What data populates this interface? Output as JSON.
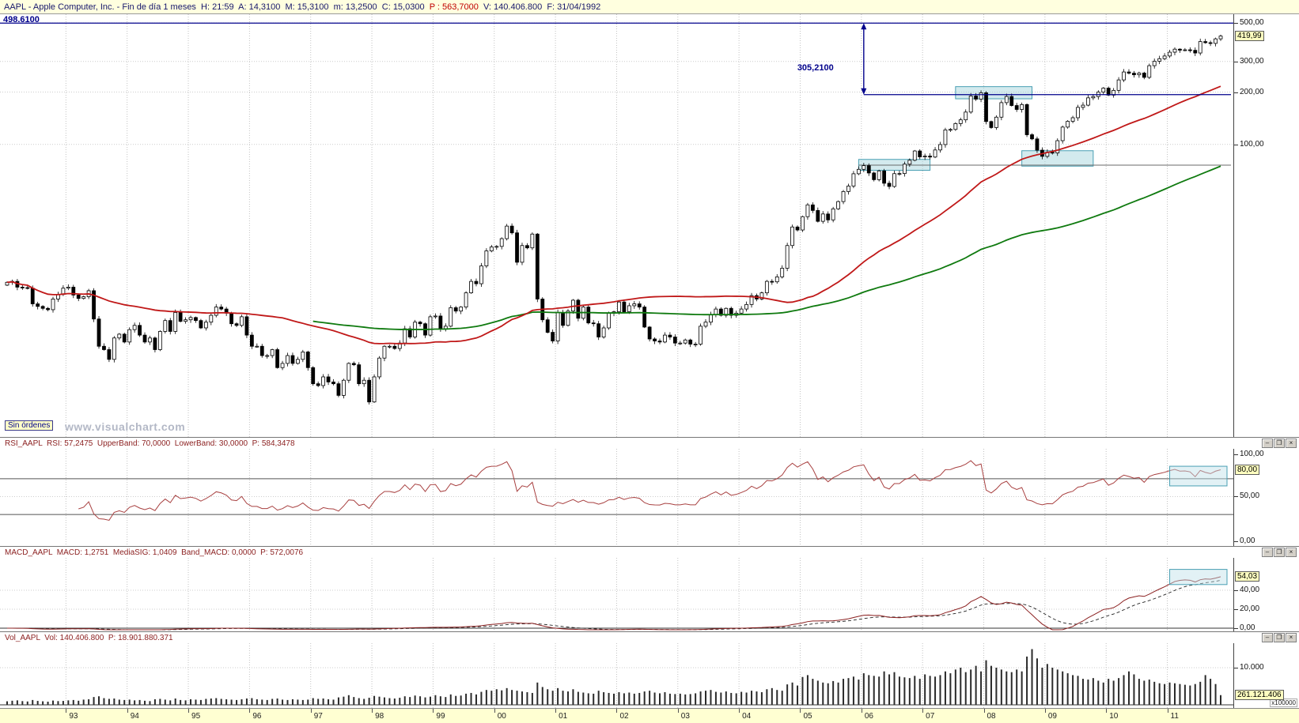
{
  "title_bar": {
    "pre": "AAPL - Apple Computer, Inc. - Fin de día 1 meses  H: 21:59  A: 14,3100  M: 15,3100  m: 13,2500  C: 15,0300  ",
    "price_red": "P : 563,7000",
    "post": "  V: 140.406.800  F: 31/04/1992"
  },
  "window_controls": {
    "minimize": "–",
    "restore": "❐",
    "close": "×"
  },
  "main_panel": {
    "top_level_label": "498.6100",
    "measure_label": "305,2100",
    "no_orders_label": "Sin órdenes",
    "watermark": "www.visualchart.com",
    "axis_labels": [
      "500,00",
      "300,00",
      "200,00",
      "100,00"
    ],
    "last_price_badge": "419,99"
  },
  "rsi_panel": {
    "header": "RSI_AAPL  RSI: 57,2475  UpperBand: 70,0000  LowerBand: 30,0000  P: 584,3478",
    "axis_labels": [
      "100,00",
      "50,00",
      "0,00"
    ],
    "badge": "80,00"
  },
  "macd_panel": {
    "header": "MACD_AAPL  MACD: 1,2751  MediaSIG: 1,0409  Band_MACD: 0,0000  P: 572,0076",
    "axis_labels": [
      "40,00",
      "20,00",
      "0,00"
    ],
    "badge": "54,03"
  },
  "vol_panel": {
    "header": "Vol_AAPL  Vol: 140.406.800  P: 18.901.880.371",
    "axis_labels": [
      "10.000"
    ],
    "badge": "261.121.406",
    "multiplier": "x100000"
  },
  "time_axis": {
    "years": [
      "93",
      "94",
      "95",
      "96",
      "97",
      "98",
      "99",
      "00",
      "01",
      "02",
      "03",
      "04",
      "05",
      "06",
      "07",
      "08",
      "09",
      "10",
      "11"
    ]
  },
  "chart_data": {
    "type": "candlestick",
    "symbol": "AAPL",
    "company": "Apple Computer, Inc.",
    "period": "1 month bars",
    "range": "1992-01 to 2011-11",
    "scale": "logarithmic",
    "price_axis_ticks": [
      500,
      300,
      200,
      100
    ],
    "last_price": 419.99,
    "closes": [
      16.1,
      16.3,
      15.1,
      15.0,
      14.9,
      12.1,
      11.7,
      11.4,
      11.2,
      12.9,
      13.7,
      14.9,
      15.1,
      13.6,
      13.0,
      13.3,
      14.4,
      9.9,
      6.9,
      6.6,
      5.8,
      7.7,
      8.1,
      7.3,
      8.6,
      9.1,
      8.0,
      7.3,
      7.7,
      6.6,
      8.4,
      9.7,
      8.4,
      10.8,
      9.6,
      9.8,
      10.1,
      9.7,
      8.8,
      9.5,
      10.4,
      11.6,
      11.3,
      10.7,
      9.3,
      9.1,
      10.2,
      8.0,
      6.9,
      6.9,
      6.1,
      6.1,
      6.6,
      5.2,
      5.5,
      6.1,
      5.5,
      5.8,
      6.4,
      5.2,
      4.2,
      4.1,
      4.6,
      4.3,
      4.2,
      3.6,
      4.4,
      5.5,
      5.4,
      4.2,
      4.4,
      3.3,
      4.6,
      5.9,
      6.9,
      6.9,
      6.7,
      7.2,
      8.7,
      7.8,
      9.5,
      9.3,
      8.0,
      10.2,
      10.3,
      8.7,
      9.0,
      11.5,
      11.0,
      11.6,
      14.0,
      16.3,
      15.8,
      20.0,
      24.4,
      25.7,
      25.9,
      28.7,
      33.9,
      31.0,
      21.0,
      26.2,
      25.4,
      30.5,
      12.9,
      9.8,
      8.3,
      7.4,
      10.8,
      9.1,
      11.0,
      12.7,
      10.0,
      11.6,
      9.4,
      9.3,
      7.8,
      8.8,
      10.7,
      10.9,
      12.4,
      10.9,
      11.8,
      12.1,
      11.6,
      8.9,
      7.6,
      7.4,
      7.3,
      8.0,
      7.8,
      7.2,
      7.2,
      7.5,
      7.1,
      7.1,
      9.0,
      9.5,
      10.5,
      11.3,
      10.4,
      11.4,
      10.4,
      10.7,
      11.3,
      12.0,
      13.5,
      12.9,
      14.0,
      16.3,
      16.2,
      17.3,
      19.4,
      26.2,
      33.5,
      32.2,
      38.4,
      44.9,
      41.7,
      36.1,
      39.8,
      36.8,
      42.6,
      46.9,
      53.6,
      57.6,
      67.8,
      71.9,
      75.5,
      68.5,
      62.7,
      70.4,
      59.8,
      57.3,
      67.9,
      68.0,
      77.0,
      81.1,
      91.7,
      84.8,
      85.7,
      84.6,
      92.9,
      99.8,
      121.2,
      122.0,
      131.8,
      138.5,
      153.5,
      189.9,
      182.2,
      198.1,
      135.4,
      125.0,
      143.5,
      173.9,
      188.7,
      167.4,
      158.9,
      169.5,
      113.7,
      107.6,
      92.7,
      85.4,
      90.1,
      89.3,
      105.1,
      125.8,
      135.8,
      142.4,
      163.4,
      168.2,
      185.3,
      188.5,
      199.9,
      210.7,
      192.1,
      204.6,
      235.0,
      261.1,
      256.9,
      251.5,
      257.3,
      243.1,
      283.8,
      301.0,
      311.2,
      322.6,
      339.3,
      353.2,
      348.5,
      350.1,
      347.8,
      335.7,
      390.5,
      384.8,
      381.3,
      404.8,
      419.99
    ],
    "volumes_millions": [
      95,
      110,
      120,
      100,
      90,
      130,
      105,
      95,
      85,
      115,
      100,
      105,
      120,
      130,
      110,
      140,
      150,
      210,
      230,
      180,
      160,
      170,
      140,
      130,
      140,
      120,
      130,
      110,
      100,
      150,
      160,
      140,
      120,
      170,
      130,
      120,
      150,
      140,
      130,
      160,
      170,
      180,
      160,
      150,
      140,
      130,
      150,
      170,
      180,
      150,
      140,
      130,
      160,
      170,
      140,
      130,
      150,
      140,
      130,
      140,
      180,
      160,
      170,
      150,
      140,
      200,
      220,
      260,
      210,
      180,
      160,
      190,
      240,
      220,
      200,
      180,
      170,
      190,
      230,
      210,
      250,
      230,
      200,
      220,
      260,
      230,
      210,
      280,
      240,
      250,
      300,
      320,
      280,
      350,
      400,
      380,
      420,
      390,
      450,
      400,
      380,
      360,
      340,
      320,
      600,
      480,
      420,
      380,
      450,
      380,
      360,
      420,
      350,
      330,
      310,
      300,
      380,
      340,
      320,
      300,
      340,
      310,
      330,
      300,
      320,
      360,
      380,
      330,
      310,
      340,
      300,
      290,
      300,
      280,
      290,
      310,
      360,
      380,
      400,
      350,
      330,
      360,
      320,
      310,
      350,
      330,
      380,
      360,
      340,
      420,
      450,
      400,
      380,
      550,
      600,
      520,
      750,
      800,
      700,
      650,
      600,
      580,
      640,
      600,
      700,
      720,
      760,
      680,
      850,
      800,
      780,
      760,
      900,
      820,
      880,
      760,
      740,
      720,
      780,
      700,
      820,
      780,
      760,
      800,
      900,
      850,
      950,
      1000,
      880,
      950,
      1050,
      900,
      1200,
      1050,
      1000,
      950,
      900,
      880,
      950,
      900,
      1300,
      1500,
      1250,
      1000,
      1100,
      1000,
      950,
      900,
      850,
      800,
      780,
      700,
      680,
      720,
      650,
      600,
      700,
      650,
      720,
      800,
      900,
      820,
      700,
      650,
      680,
      620,
      580,
      560,
      600,
      580,
      560,
      540,
      520,
      560,
      620,
      800,
      700,
      560,
      261
    ],
    "indicators": {
      "red_ma": "slow simple moving average (55 months)",
      "green_ma": "very slow simple moving average (200 months)",
      "rsi": {
        "period": 14,
        "upper_band": 70,
        "lower_band": 30,
        "last": 80.0
      },
      "macd": {
        "fast": 12,
        "slow": 26,
        "signal": 9,
        "last": 54.03
      },
      "last_volume": 261121406
    },
    "annotations": {
      "top_line_level": 498.61,
      "measure": {
        "i": 168,
        "from_level": 193.4,
        "label": "305,2100"
      },
      "support_from_i": 167,
      "support_level": 76,
      "boxes": [
        {
          "i0": 186,
          "i1": 201,
          "p0": 183,
          "p1": 215
        },
        {
          "i0": 167,
          "i1": 181,
          "p0": 71,
          "p1": 82
        },
        {
          "i0": 199,
          "i1": 213,
          "p0": 75,
          "p1": 92
        }
      ],
      "rsi_box": {
        "i0": 228,
        "i1": 238,
        "v0": 62,
        "v1": 84
      },
      "macd_box": {
        "i0": 228,
        "i1": 238,
        "v0": 46,
        "v1": 62
      }
    }
  }
}
